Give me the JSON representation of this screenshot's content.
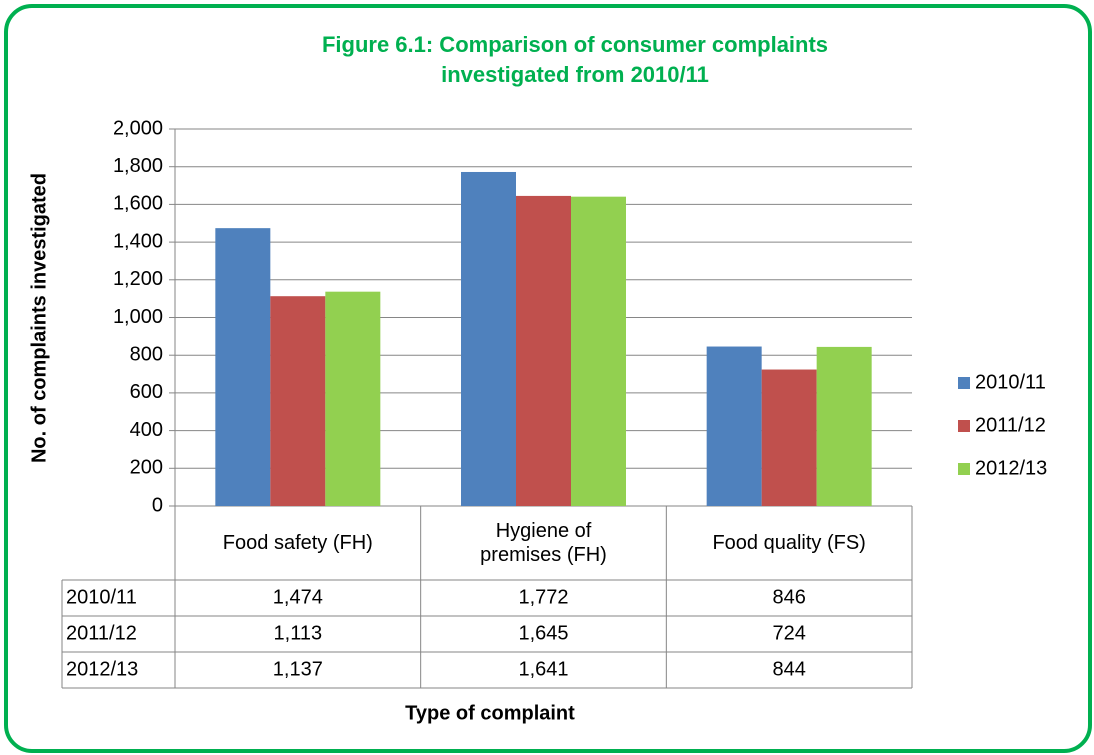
{
  "chart_data": {
    "type": "bar",
    "title": "Figure 6.1: Comparison of consumer complaints investigated from 2010/11",
    "x_label": "Type of complaint",
    "y_label": "No. of complaints investigated",
    "categories": [
      "Food safety (FH)",
      "Hygiene of premises (FH)",
      "Food quality (FS)"
    ],
    "series": [
      {
        "name": "2010/11",
        "color": "#4f81bd",
        "values": [
          1474,
          1772,
          846
        ],
        "value_labels": [
          "1,474",
          "1,772",
          "846"
        ]
      },
      {
        "name": "2011/12",
        "color": "#c0504d",
        "values": [
          1113,
          1645,
          724
        ],
        "value_labels": [
          "1,113",
          "1,645",
          "724"
        ]
      },
      {
        "name": "2012/13",
        "color": "#92d050",
        "values": [
          1137,
          1641,
          844
        ],
        "value_labels": [
          "1,137",
          "1,641",
          "844"
        ]
      }
    ],
    "ylim": [
      0,
      2000
    ],
    "yticks": [
      0,
      200,
      400,
      600,
      800,
      {
        "value": 1000,
        "label": "1,000"
      },
      {
        "value": 1200,
        "label": "1,200"
      },
      {
        "value": 1400,
        "label": "1,400"
      },
      {
        "value": 1600,
        "label": "1,600"
      },
      {
        "value": 1800,
        "label": "1,800"
      },
      {
        "value": 2000,
        "label": "2,000"
      }
    ],
    "grid": true,
    "legend": "right"
  }
}
